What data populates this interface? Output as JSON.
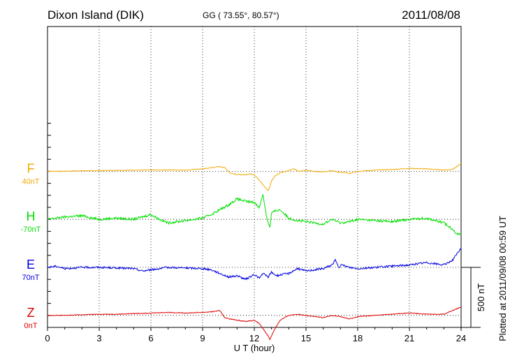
{
  "header": {
    "station": "Dixon Island (DIK)",
    "coords": "GG ( 73.55°,  80.57°)",
    "date": "2011/08/08"
  },
  "footer": {
    "plotted_note": "Plotted at 2011/09/08 00:59 UT",
    "scale_label": "500 nT"
  },
  "chart_data": {
    "type": "line",
    "title": "Dixon Island (DIK)",
    "xlabel": "U T (hour)",
    "ylabel": "",
    "xlim": [
      0,
      24
    ],
    "x_ticks": [
      0,
      3,
      6,
      9,
      12,
      15,
      18,
      21,
      24
    ],
    "x_tick_labels": [
      "0",
      "3",
      "6",
      "9",
      "12",
      "15",
      "18",
      "21",
      "24"
    ],
    "grid": true,
    "scale_nT": 500,
    "units": "nT",
    "series": [
      {
        "name": "F",
        "baseline_label": "40nT",
        "color": "#f2a900",
        "offset_nT": 1300,
        "t": [
          0,
          1,
          2,
          3,
          4,
          5,
          6,
          7,
          8,
          9,
          9.5,
          10,
          10.3,
          10.6,
          11,
          11.4,
          11.8,
          12,
          12.2,
          12.4,
          12.6,
          12.8,
          12.9,
          13.0,
          13.2,
          13.5,
          14,
          14.3,
          14.6,
          15,
          15.5,
          16,
          16.5,
          17,
          17.3,
          17.5,
          17.8,
          18,
          19,
          20,
          21,
          22,
          23,
          23.5,
          24
        ],
        "v": [
          0,
          0,
          5,
          5,
          8,
          10,
          10,
          12,
          10,
          20,
          30,
          40,
          30,
          -15,
          -25,
          -30,
          -20,
          -30,
          -60,
          -90,
          -130,
          -160,
          -130,
          -80,
          -40,
          -10,
          5,
          20,
          0,
          10,
          0,
          -5,
          5,
          -10,
          -10,
          -20,
          -5,
          0,
          10,
          15,
          25,
          20,
          10,
          15,
          65
        ]
      },
      {
        "name": "H",
        "baseline_label": "-70nT",
        "color": "#00e000",
        "offset_nT": 900,
        "t": [
          0,
          0.5,
          1,
          2,
          3,
          4,
          5,
          5.5,
          6,
          6.5,
          7,
          8,
          9,
          9.5,
          10,
          10.5,
          11,
          11.5,
          12,
          12.3,
          12.5,
          12.7,
          12.9,
          13.0,
          13.2,
          13.5,
          14,
          14.5,
          15,
          15.5,
          16,
          16.5,
          17,
          17.5,
          18,
          19,
          20,
          21,
          22,
          23,
          23.5,
          23.8,
          24
        ],
        "v": [
          0,
          10,
          20,
          30,
          0,
          10,
          0,
          20,
          40,
          0,
          -30,
          -10,
          10,
          40,
          80,
          120,
          170,
          150,
          140,
          100,
          210,
          30,
          -70,
          50,
          70,
          80,
          10,
          -10,
          -20,
          -30,
          -40,
          0,
          -30,
          -20,
          0,
          -10,
          -20,
          0,
          10,
          -30,
          -80,
          -130,
          -110
        ]
      },
      {
        "name": "E",
        "baseline_label": "70nT",
        "color": "#0000e0",
        "offset_nT": 500,
        "t": [
          0,
          0.5,
          1,
          2,
          3,
          4,
          5,
          5.5,
          6,
          6.5,
          7,
          8,
          9,
          9.5,
          10,
          10.5,
          11,
          11.5,
          12,
          12.3,
          12.5,
          12.8,
          13,
          13.3,
          13.6,
          14,
          14.5,
          15,
          15.5,
          16,
          16.5,
          16.7,
          16.9,
          17.1,
          17.5,
          18,
          19,
          20,
          21,
          22,
          23,
          23.5,
          24
        ],
        "v": [
          0,
          10,
          -10,
          0,
          0,
          -5,
          -10,
          -30,
          -20,
          -10,
          0,
          -5,
          -10,
          -20,
          -50,
          -80,
          -70,
          -100,
          -60,
          -90,
          -50,
          -80,
          -40,
          -70,
          -60,
          -50,
          -10,
          -30,
          -20,
          -10,
          20,
          60,
          0,
          20,
          0,
          -10,
          0,
          10,
          20,
          40,
          20,
          60,
          160
        ]
      },
      {
        "name": "Z",
        "baseline_label": "0nT",
        "color": "#e00000",
        "offset_nT": 100,
        "t": [
          0,
          1,
          2,
          3,
          4,
          5,
          6,
          7,
          8,
          9,
          9.5,
          10,
          10.3,
          10.6,
          11,
          11.5,
          12,
          12.3,
          12.6,
          12.8,
          12.9,
          13.0,
          13.2,
          13.5,
          14,
          14.5,
          15,
          15.5,
          16,
          16.5,
          17,
          17.5,
          17.8,
          18,
          19,
          20,
          21,
          22,
          23,
          23.5,
          24
        ],
        "v": [
          0,
          0,
          5,
          10,
          10,
          15,
          20,
          25,
          20,
          25,
          30,
          40,
          -20,
          -30,
          -40,
          -50,
          -40,
          -70,
          -130,
          -170,
          -200,
          -170,
          -110,
          -40,
          0,
          10,
          0,
          -10,
          -20,
          0,
          -10,
          -30,
          -20,
          -10,
          0,
          10,
          20,
          10,
          10,
          40,
          70
        ]
      }
    ]
  }
}
